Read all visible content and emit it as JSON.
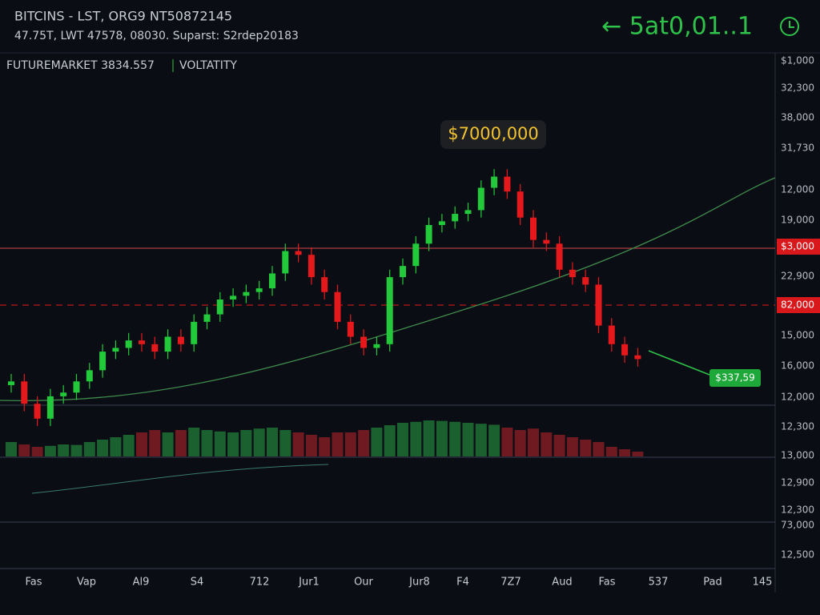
{
  "header": {
    "title": "BITCINS - LST, ORG9 NT50872145",
    "subtitle": "47.75T, LWT 47578, 08030. Suparst: S2rdep20183",
    "indicator": "FUTUREMARKET 3834.557",
    "indicator2": "VOLTATITY",
    "ticker": "← 5at0,01..1"
  },
  "chart_data": {
    "type": "candlestick",
    "ylim": [
      0,
      100
    ],
    "up_color": "#22c93a",
    "down_color": "#e5191c",
    "open": [
      17,
      18,
      12,
      8,
      14,
      15,
      18,
      21,
      26,
      27,
      29,
      28,
      26,
      30,
      28,
      34,
      36,
      40,
      41,
      42,
      43,
      47,
      53,
      52,
      46,
      42,
      34,
      30,
      27,
      28,
      46,
      49,
      55,
      60,
      61,
      63,
      64,
      70,
      73,
      69,
      62,
      56,
      55,
      48,
      46,
      44,
      33,
      28,
      25
    ],
    "high": [
      20,
      20,
      14,
      16,
      17,
      20,
      23,
      28,
      29,
      31,
      31,
      30,
      32,
      32,
      36,
      38,
      42,
      43,
      44,
      45,
      49,
      55,
      55,
      54,
      48,
      44,
      36,
      32,
      30,
      48,
      51,
      57,
      62,
      63,
      65,
      66,
      72,
      75,
      75,
      71,
      64,
      58,
      57,
      50,
      48,
      46,
      35,
      30,
      27
    ],
    "low": [
      15,
      10,
      6,
      6,
      12,
      13,
      16,
      19,
      24,
      25,
      26,
      24,
      24,
      26,
      26,
      32,
      34,
      38,
      39,
      40,
      41,
      45,
      50,
      44,
      40,
      32,
      28,
      25,
      25,
      26,
      44,
      47,
      53,
      58,
      59,
      61,
      62,
      68,
      67,
      60,
      54,
      53,
      46,
      44,
      42,
      31,
      26,
      23,
      22
    ],
    "close": [
      18,
      12,
      8,
      14,
      15,
      18,
      21,
      26,
      27,
      29,
      28,
      26,
      30,
      28,
      34,
      36,
      40,
      41,
      42,
      43,
      47,
      53,
      52,
      46,
      42,
      34,
      30,
      27,
      28,
      46,
      49,
      55,
      60,
      61,
      63,
      64,
      70,
      73,
      69,
      62,
      56,
      55,
      48,
      46,
      44,
      33,
      28,
      25,
      24
    ],
    "volume": [
      30,
      25,
      20,
      22,
      25,
      24,
      30,
      35,
      40,
      45,
      50,
      55,
      50,
      55,
      60,
      55,
      52,
      50,
      55,
      58,
      60,
      55,
      50,
      45,
      40,
      50,
      50,
      55,
      60,
      65,
      70,
      72,
      75,
      74,
      72,
      70,
      68,
      66,
      60,
      55,
      58,
      50,
      45,
      40,
      35,
      30,
      20,
      15,
      10
    ]
  },
  "price_labels": [
    "$1,000",
    "32,300",
    "38,000",
    "31,730",
    "12,000",
    "19,000",
    "$3,000",
    "22,900",
    "82,000",
    "15,000",
    "16,000",
    "12,000",
    "12,300",
    "13,000",
    "12,900",
    "12,300",
    "73,000",
    "12,500"
  ],
  "x_labels": [
    "Fas",
    "Vap",
    "Al9",
    "S4",
    "712",
    "Jur1",
    "Our",
    "Jur8",
    "F4",
    "7Z7",
    "Aud",
    "Fas",
    "537",
    "Pad",
    "145"
  ],
  "callout": "$7000,000",
  "price_tag": "$337,59"
}
